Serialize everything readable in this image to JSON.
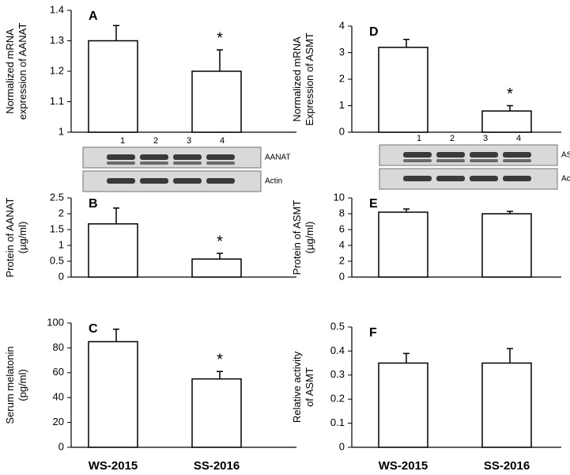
{
  "chart_data": [
    {
      "type": "bar",
      "panel": "A",
      "ylabel": [
        "Normalized mRNA",
        "expression of AANAT"
      ],
      "color": "#ffffff",
      "ylim": [
        1,
        1.4
      ],
      "yticks": [
        1,
        1.1,
        1.2,
        1.3,
        1.4
      ],
      "values": [
        1.3,
        1.2
      ],
      "errors": [
        0.05,
        0.07
      ],
      "annotation": "*"
    },
    {
      "type": "bar",
      "panel": "B",
      "ylabel": [
        "Protein of AANAT",
        "(µg/ml)"
      ],
      "color": "#ffffff",
      "ylim": [
        0,
        2.5
      ],
      "yticks": [
        0,
        0.5,
        1,
        1.5,
        2,
        2.5
      ],
      "values": [
        1.68,
        0.57
      ],
      "errors": [
        0.5,
        0.18
      ],
      "annotation": "*"
    },
    {
      "type": "bar",
      "panel": "C",
      "ylabel": [
        "Serum melatonin",
        "(pg/ml)"
      ],
      "color": "#ffffff",
      "ylim": [
        0,
        100
      ],
      "yticks": [
        0,
        20,
        40,
        60,
        80,
        100
      ],
      "values": [
        85,
        55
      ],
      "errors": [
        10,
        6
      ],
      "annotation": "*",
      "categories": [
        "WS-2015",
        "SS-2016"
      ]
    },
    {
      "type": "bar",
      "panel": "D",
      "ylabel": [
        "Normalized mRNA",
        "Expression of ASMT"
      ],
      "color": "#ffffff",
      "ylim": [
        0,
        4
      ],
      "yticks": [
        0,
        1,
        2,
        3,
        4
      ],
      "values": [
        3.2,
        0.8
      ],
      "errors": [
        0.3,
        0.2
      ],
      "annotation": "*"
    },
    {
      "type": "bar",
      "panel": "E",
      "ylabel": [
        "Protein of ASMT",
        "(µg/ml)"
      ],
      "color": "#ffffff",
      "ylim": [
        0,
        10
      ],
      "yticks": [
        0,
        2,
        4,
        6,
        8,
        10
      ],
      "values": [
        8.2,
        8.0
      ],
      "errors": [
        0.4,
        0.3
      ]
    },
    {
      "type": "bar",
      "panel": "F",
      "ylabel": [
        "Relative activity",
        "of ASMT"
      ],
      "color": "#ffffff",
      "ylim": [
        0,
        0.5
      ],
      "yticks": [
        0,
        0.1,
        0.2,
        0.3,
        0.4,
        0.5
      ],
      "values": [
        0.35,
        0.35
      ],
      "errors": [
        0.04,
        0.06
      ],
      "categories": [
        "WS-2015",
        "SS-2016"
      ]
    }
  ],
  "blots": [
    {
      "lanes": [
        "1",
        "2",
        "3",
        "4"
      ],
      "bands": [
        "AANAT",
        "Actin"
      ]
    },
    {
      "lanes": [
        "1",
        "2",
        "3",
        "4"
      ],
      "bands": [
        "ASMT",
        "Actin"
      ]
    }
  ]
}
